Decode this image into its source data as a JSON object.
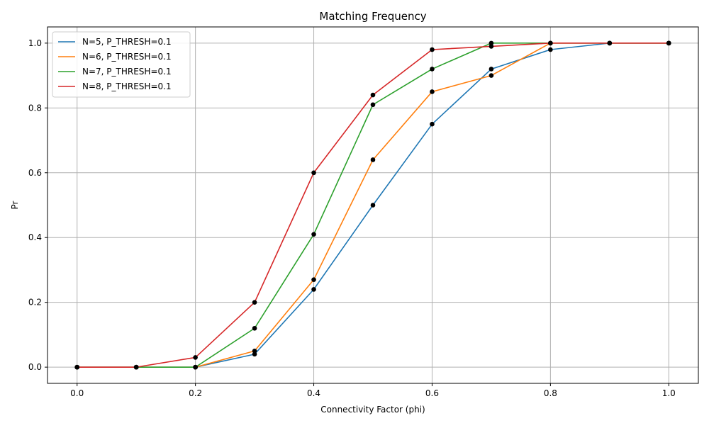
{
  "chart_data": {
    "type": "line",
    "title": "Matching Frequency",
    "xlabel": "Connectivity Factor (phi)",
    "ylabel": "Pr",
    "xlim": [
      -0.05,
      1.05
    ],
    "ylim": [
      -0.05,
      1.05
    ],
    "x_ticks": [
      0.0,
      0.2,
      0.4,
      0.6,
      0.8,
      1.0
    ],
    "x_tick_labels": [
      "0.0",
      "0.2",
      "0.4",
      "0.6",
      "0.8",
      "1.0"
    ],
    "y_ticks": [
      0.0,
      0.2,
      0.4,
      0.6,
      0.8,
      1.0
    ],
    "y_tick_labels": [
      "0.0",
      "0.2",
      "0.4",
      "0.6",
      "0.8",
      "1.0"
    ],
    "grid": true,
    "legend_position": "top-left",
    "marker_color": "#000000",
    "x": [
      0.0,
      0.1,
      0.2,
      0.3,
      0.4,
      0.5,
      0.6,
      0.7,
      0.8,
      0.9,
      1.0
    ],
    "series": [
      {
        "name": "N=5, P_THRESH=0.1",
        "color": "#1f77b4",
        "values": [
          0.0,
          0.0,
          0.0,
          0.04,
          0.24,
          0.5,
          0.75,
          0.92,
          0.98,
          1.0,
          1.0
        ]
      },
      {
        "name": "N=6, P_THRESH=0.1",
        "color": "#ff7f0e",
        "values": [
          0.0,
          0.0,
          0.0,
          0.05,
          0.27,
          0.64,
          0.85,
          0.9,
          1.0,
          1.0,
          1.0
        ]
      },
      {
        "name": "N=7, P_THRESH=0.1",
        "color": "#2ca02c",
        "values": [
          0.0,
          0.0,
          0.0,
          0.12,
          0.41,
          0.81,
          0.92,
          1.0,
          1.0,
          1.0,
          1.0
        ]
      },
      {
        "name": "N=8, P_THRESH=0.1",
        "color": "#d62728",
        "values": [
          0.0,
          0.0,
          0.03,
          0.2,
          0.6,
          0.84,
          0.98,
          0.99,
          1.0,
          1.0,
          1.0
        ]
      }
    ]
  }
}
